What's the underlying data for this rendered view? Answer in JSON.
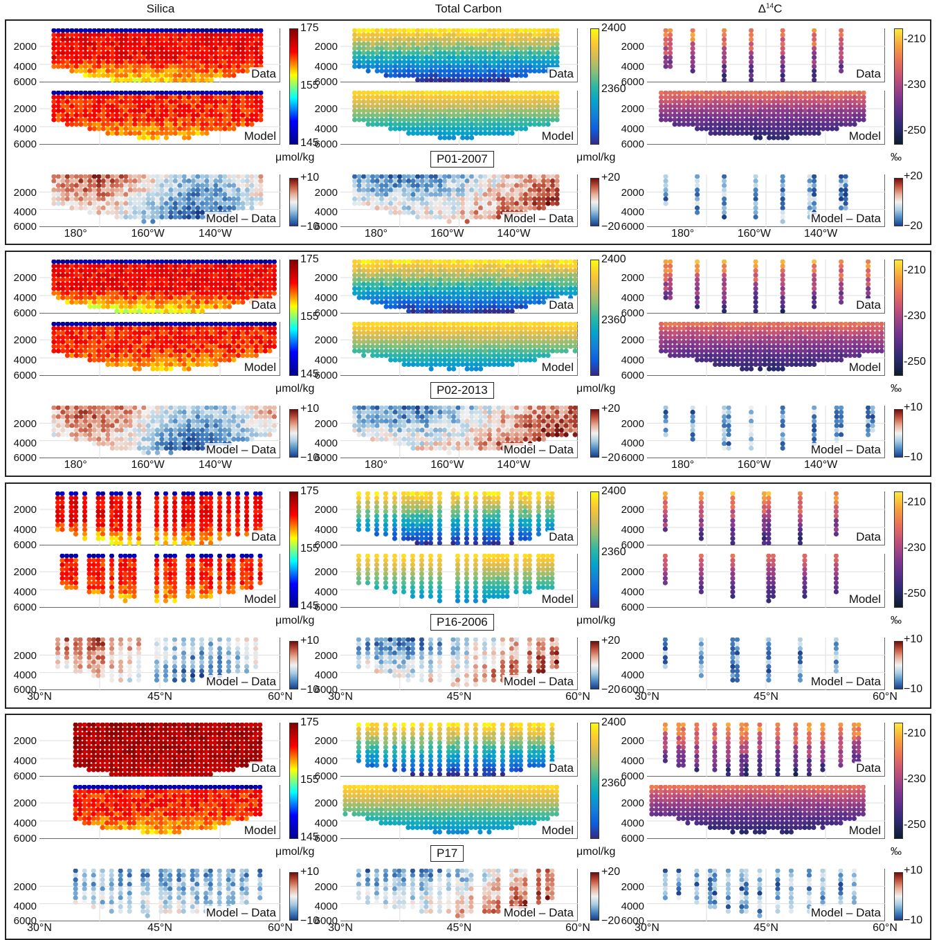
{
  "columns": [
    {
      "key": "silica",
      "title": "Silica",
      "sup": ""
    },
    {
      "key": "carbon",
      "title": "Total Carbon",
      "sup": ""
    },
    {
      "key": "c14",
      "title": "Δ",
      "sup": "14",
      "suffix": "C"
    }
  ],
  "panel_labels": [
    "Data",
    "Model",
    "Model – Data"
  ],
  "depth_ticks": [
    "2000",
    "4000",
    "6000"
  ],
  "colorbars": {
    "silica": {
      "top": "175",
      "mid": "155",
      "bottom": "145",
      "unit": "μmol/kg",
      "diff_top": "+10",
      "diff_bottom": "−10"
    },
    "carbon": {
      "top": "2400",
      "mid": "2360",
      "bottom": "",
      "unit": "μmol/kg",
      "diff_top": "+20",
      "diff_bottom": "−20"
    },
    "c14": {
      "ticks": [
        "-210",
        "-230",
        "-250"
      ],
      "unit": "‰"
    }
  },
  "colors": {
    "jet": [
      "#00008f",
      "#0000ff",
      "#00ffff",
      "#ffff00",
      "#ff0000",
      "#800000"
    ],
    "parula": [
      "#352a87",
      "#0f5cdd",
      "#1481d6",
      "#06a4ca",
      "#2eb7a4",
      "#87bf77",
      "#d1bb59",
      "#fec832",
      "#f9fb0e"
    ],
    "c14map": [
      "#0b1d2e",
      "#2b2a6e",
      "#5a2f8a",
      "#8a3c8a",
      "#c0507a",
      "#e8705a",
      "#f6a23c",
      "#fcea3c"
    ],
    "diff": [
      "#1a3e8a",
      "#4a88c4",
      "#a9cce2",
      "#f1f1f1",
      "#e7ae98",
      "#c4543d",
      "#6e0e0e"
    ],
    "frame": "#222222"
  },
  "chart_data": [
    {
      "type": "scatter",
      "section": "P01-2007",
      "x_ticks": [
        "180°",
        "160°W",
        "140°W"
      ],
      "c14_diff_ticks": [
        "+20",
        "−20"
      ],
      "variables": [
        "Silica",
        "Total Carbon",
        "Δ14C"
      ],
      "panels": [
        "Data",
        "Model",
        "Model – Data"
      ],
      "ylabel": "",
      "ylim": [
        6000,
        1000
      ]
    },
    {
      "type": "scatter",
      "section": "P02-2013",
      "x_ticks": [
        "180°",
        "160°W",
        "140°W"
      ],
      "c14_diff_ticks": [
        "+10",
        "−10"
      ],
      "variables": [
        "Silica",
        "Total Carbon",
        "Δ14C"
      ],
      "panels": [
        "Data",
        "Model",
        "Model – Data"
      ],
      "ylabel": "",
      "ylim": [
        6000,
        1000
      ]
    },
    {
      "type": "scatter",
      "section": "P16-2006",
      "x_ticks": [
        "30°N",
        "45°N",
        "60°N"
      ],
      "c14_diff_ticks": [
        "+10",
        "−10"
      ],
      "variables": [
        "Silica",
        "Total Carbon",
        "Δ14C"
      ],
      "panels": [
        "Data",
        "Model",
        "Model – Data"
      ],
      "ylabel": "",
      "ylim": [
        6000,
        1000
      ]
    },
    {
      "type": "scatter",
      "section": "P17",
      "x_ticks": [
        "30°N",
        "45°N",
        "60°N"
      ],
      "c14_diff_ticks": [
        "+10",
        "−10"
      ],
      "variables": [
        "Silica",
        "Total Carbon",
        "Δ14C"
      ],
      "panels": [
        "Data",
        "Model",
        "Model – Data"
      ],
      "ylabel": "",
      "ylim": [
        6000,
        1000
      ]
    }
  ]
}
